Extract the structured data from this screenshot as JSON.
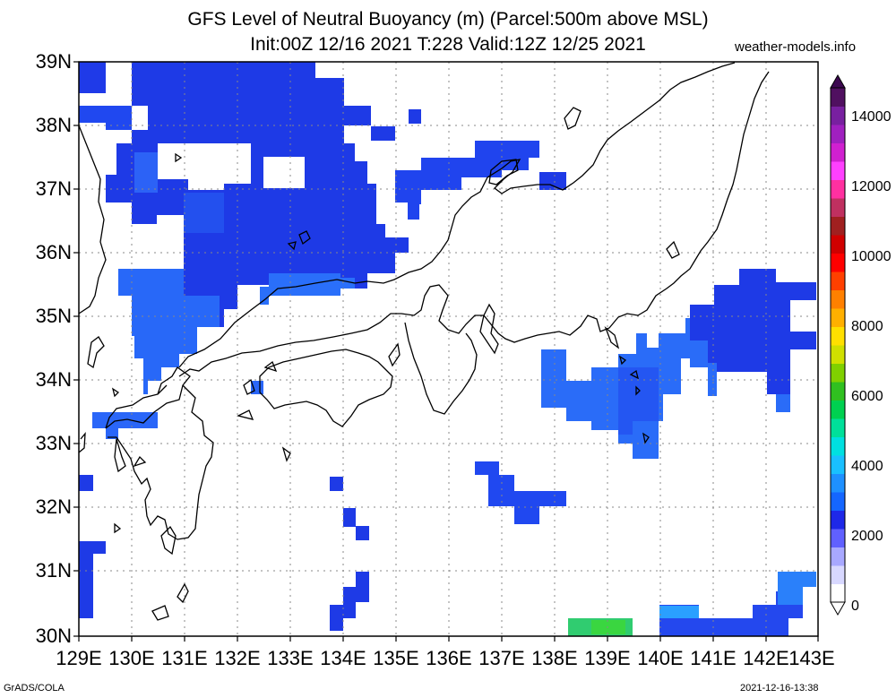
{
  "header": {
    "title_line1": "GFS Level of Neutral Buoyancy (m) (Parcel:500m above MSL)",
    "title_line2": "Init:00Z 12/16 2021 T:228 Valid:12Z 12/25 2021",
    "site": "weather-models.info"
  },
  "footer": {
    "left": "GrADS/COLA",
    "right": "2021-12-16-13:38"
  },
  "axes": {
    "lat_labels": [
      "39N",
      "38N",
      "37N",
      "36N",
      "35N",
      "34N",
      "33N",
      "32N",
      "31N",
      "30N"
    ],
    "lon_labels": [
      "129E",
      "130E",
      "131E",
      "132E",
      "133E",
      "134E",
      "135E",
      "136E",
      "137E",
      "138E",
      "139E",
      "140E",
      "141E",
      "142E",
      "143E"
    ]
  },
  "colorbar": {
    "labels": [
      "14000",
      "12000",
      "10000",
      "8000",
      "6000",
      "4000",
      "2000",
      "0"
    ],
    "colors": [
      "#ffffff",
      "#d8d8ff",
      "#a8a8ff",
      "#6060ff",
      "#1e28e8",
      "#1466ff",
      "#1e90ff",
      "#19c0ff",
      "#00e0e0",
      "#00e09a",
      "#00d050",
      "#30c020",
      "#80d000",
      "#d0e000",
      "#ffe000",
      "#ffb000",
      "#ff8000",
      "#ff4000",
      "#ff0000",
      "#d00000",
      "#a02020",
      "#c03060",
      "#ff30a0",
      "#ff40ff",
      "#d020d0",
      "#a020c0",
      "#7820a0",
      "#501060"
    ]
  },
  "map": {
    "region": "Japan / Korea",
    "field_colors": {
      "deep": "#1a2ee6",
      "mid": "#2050f0",
      "light": "#2878ff",
      "green": "#30d040",
      "cyan": "#20c0e0"
    }
  }
}
